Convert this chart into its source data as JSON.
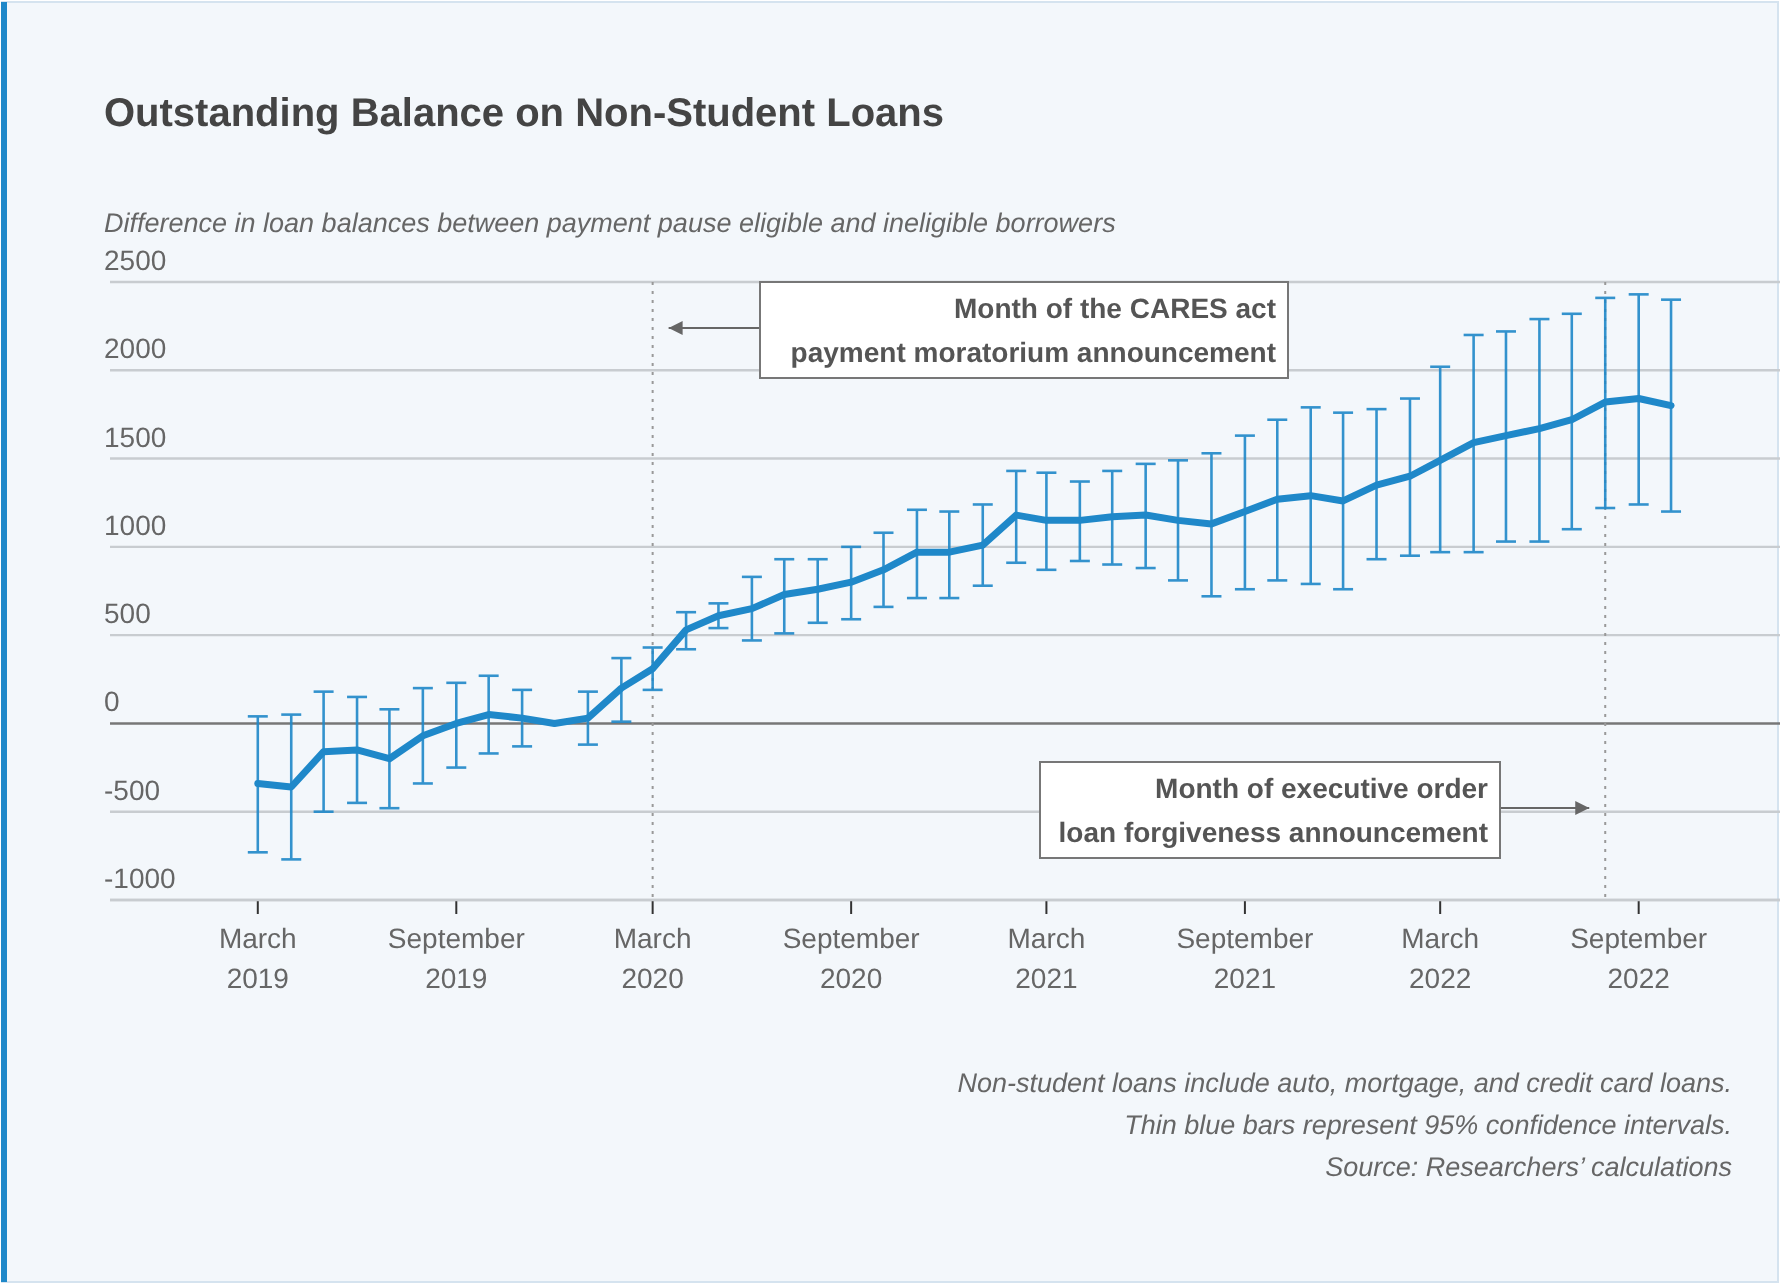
{
  "chart_data": {
    "type": "line",
    "title": "Outstanding Balance on Non-Student Loans",
    "ylabel": "Difference in loan balances between payment pause eligible and ineligible borrowers",
    "x": [
      "2019-03",
      "2019-04",
      "2019-05",
      "2019-06",
      "2019-07",
      "2019-08",
      "2019-09",
      "2019-10",
      "2019-11",
      "2019-12",
      "2020-01",
      "2020-02",
      "2020-03",
      "2020-04",
      "2020-05",
      "2020-06",
      "2020-07",
      "2020-08",
      "2020-09",
      "2020-10",
      "2020-11",
      "2020-12",
      "2021-01",
      "2021-02",
      "2021-03",
      "2021-04",
      "2021-05",
      "2021-06",
      "2021-07",
      "2021-08",
      "2021-09",
      "2021-10",
      "2021-11",
      "2021-12",
      "2022-01",
      "2022-02",
      "2022-03",
      "2022-04",
      "2022-05",
      "2022-06",
      "2022-07",
      "2022-08",
      "2022-09",
      "2022-10"
    ],
    "series": [
      {
        "color": "#1f88c9",
        "values": [
          -340,
          -360,
          -160,
          -150,
          -200,
          -70,
          0,
          50,
          30,
          0,
          30,
          200,
          310,
          530,
          610,
          650,
          730,
          760,
          800,
          870,
          970,
          970,
          1010,
          1180,
          1150,
          1150,
          1170,
          1180,
          1150,
          1130,
          1200,
          1270,
          1290,
          1260,
          1350,
          1400,
          1490,
          1590,
          1630,
          1670,
          1720,
          1820,
          1840,
          1800
        ],
        "errors": [
          [
            -730,
            40
          ],
          [
            -770,
            50
          ],
          [
            -500,
            180
          ],
          [
            -450,
            150
          ],
          [
            -480,
            80
          ],
          [
            -340,
            200
          ],
          [
            -250,
            230
          ],
          [
            -170,
            270
          ],
          [
            -130,
            190
          ],
          null,
          [
            -120,
            180
          ],
          [
            10,
            370
          ],
          [
            190,
            430
          ],
          [
            420,
            630
          ],
          [
            540,
            680
          ],
          [
            470,
            830
          ],
          [
            510,
            930
          ],
          [
            570,
            930
          ],
          [
            590,
            1000
          ],
          [
            660,
            1080
          ],
          [
            710,
            1210
          ],
          [
            710,
            1200
          ],
          [
            780,
            1240
          ],
          [
            910,
            1430
          ],
          [
            870,
            1420
          ],
          [
            920,
            1370
          ],
          [
            900,
            1430
          ],
          [
            880,
            1470
          ],
          [
            810,
            1490
          ],
          [
            720,
            1530
          ],
          [
            760,
            1630
          ],
          [
            810,
            1720
          ],
          [
            790,
            1790
          ],
          [
            760,
            1760
          ],
          [
            930,
            1780
          ],
          [
            950,
            1840
          ],
          [
            970,
            2020
          ],
          [
            970,
            2200
          ],
          [
            1030,
            2220
          ],
          [
            1030,
            2290
          ],
          [
            1100,
            2320
          ],
          [
            1220,
            2410
          ],
          [
            1240,
            2430
          ],
          [
            1200,
            2400
          ]
        ]
      }
    ],
    "xlim": [
      "2018-10-15",
      "2023-01-10"
    ],
    "xticks": [
      {
        "value": "2019-03",
        "label": "March\n2019"
      },
      {
        "value": "2019-09",
        "label": "September\n2019"
      },
      {
        "value": "2020-03",
        "label": "March\n2020"
      },
      {
        "value": "2020-09",
        "label": "September\n2020"
      },
      {
        "value": "2021-03",
        "label": "March\n2021"
      },
      {
        "value": "2021-09",
        "label": "September\n2021"
      },
      {
        "value": "2022-03",
        "label": "March\n2022"
      },
      {
        "value": "2022-09",
        "label": "September\n2022"
      }
    ],
    "ylim": [
      -1000,
      2500
    ],
    "yticks": [
      -1000,
      -500,
      0,
      500,
      1000,
      1500,
      2000,
      2500
    ],
    "grid": "y",
    "ref_lines": [
      {
        "axis": "x",
        "value": "2020-03",
        "label": "Month of the CARES act\npayment moratorium announcement",
        "line_style": "dotted"
      },
      {
        "axis": "x",
        "value": "2022-08",
        "label": "Month of executive order\nloan forgiveness announcement",
        "line_style": "dotted"
      }
    ],
    "annotations": [
      "Non-student loans include auto, mortgage, and credit card loans.",
      "Thin blue bars represent 95% confidence intervals.",
      "Source: Researchers’ calculations"
    ]
  }
}
